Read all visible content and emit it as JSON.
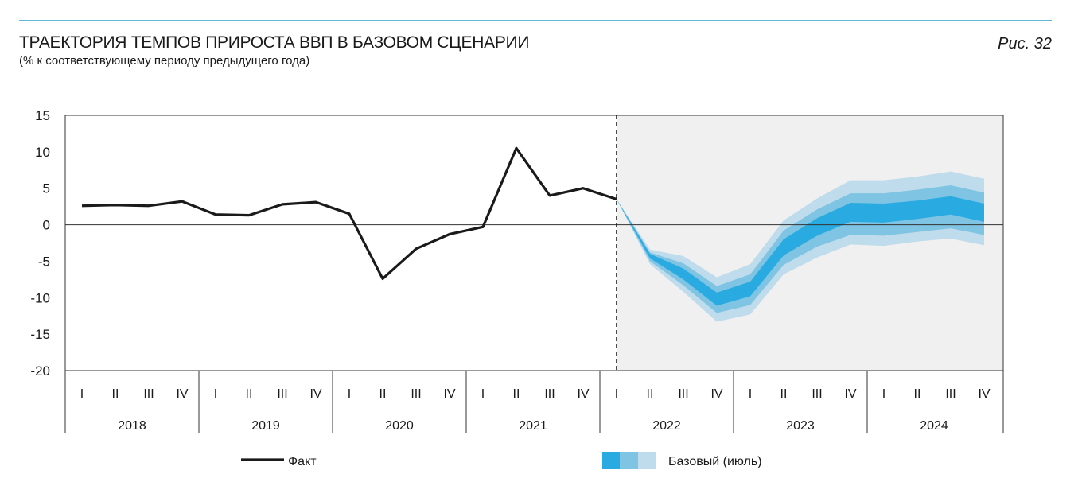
{
  "header": {
    "title": "ТРАЕКТОРИЯ ТЕМПОВ ПРИРОСТА ВВП В БАЗОВОМ СЦЕНАРИИ",
    "subtitle": "(% к соответствующему периоду предыдущего года)",
    "figure_label": "Рис. 32"
  },
  "chart_data": {
    "type": "line",
    "ylim": [
      -20,
      15
    ],
    "yticks": [
      15,
      10,
      5,
      0,
      -5,
      -10,
      -15,
      -20
    ],
    "quarter_labels": [
      "I",
      "II",
      "III",
      "IV"
    ],
    "years": [
      "2018",
      "2019",
      "2020",
      "2021",
      "2022",
      "2023",
      "2024"
    ],
    "forecast_start": "2022 I",
    "colors": {
      "fact": "#1a1a1a",
      "band_inner": "#29abe2",
      "band_mid": "#7fc4e3",
      "band_outer": "#bfdcec",
      "forecast_bg": "#f0f0f0"
    },
    "series": [
      {
        "name": "Факт",
        "values": [
          2.6,
          2.7,
          2.6,
          3.2,
          1.4,
          1.3,
          2.8,
          3.1,
          1.5,
          -7.4,
          -3.3,
          -1.3,
          -0.3,
          10.5,
          4.0,
          5.0,
          3.5
        ]
      }
    ],
    "band": {
      "name": "Базовый (июль)",
      "outer_upper": [
        3.5,
        -3.4,
        -4.3,
        -7.2,
        -5.4,
        0.6,
        3.6,
        6.1,
        6.1,
        6.6,
        7.3,
        6.3
      ],
      "mid_upper": [
        3.5,
        -3.8,
        -5.3,
        -8.4,
        -6.8,
        -0.8,
        2.1,
        4.3,
        4.3,
        4.8,
        5.4,
        4.4
      ],
      "inner_upper": [
        3.5,
        -4.0,
        -6.0,
        -9.3,
        -7.8,
        -2.0,
        0.9,
        3.0,
        2.9,
        3.3,
        3.9,
        2.9
      ],
      "inner_lower": [
        3.5,
        -4.6,
        -7.5,
        -11.1,
        -9.8,
        -4.2,
        -1.5,
        0.4,
        0.3,
        0.8,
        1.4,
        0.4
      ],
      "mid_lower": [
        3.5,
        -5.0,
        -8.3,
        -12.1,
        -11.0,
        -5.5,
        -3.0,
        -1.4,
        -1.5,
        -1.0,
        -0.5,
        -1.4
      ],
      "outer_lower": [
        3.5,
        -5.4,
        -9.2,
        -13.3,
        -12.3,
        -6.8,
        -4.5,
        -2.7,
        -2.9,
        -2.3,
        -1.9,
        -2.8
      ]
    }
  }
}
